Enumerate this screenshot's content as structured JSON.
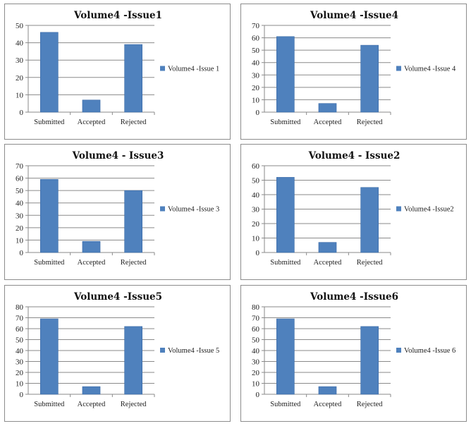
{
  "colors": {
    "bar": "#4f81bd",
    "grid": "#8a8a8a",
    "border": "#8c8c8c"
  },
  "chart_data": [
    {
      "type": "bar",
      "title": "Volume4 -Issue1",
      "categories": [
        "Submitted",
        "Accepted",
        "Rejected"
      ],
      "series": [
        {
          "name": "Volume4 -Issue 1",
          "values": [
            46,
            7,
            39
          ]
        }
      ],
      "ylim": [
        0,
        50
      ],
      "ystep": 10,
      "grid": true,
      "legend": "right"
    },
    {
      "type": "bar",
      "title": "Volume4 -Issue4",
      "categories": [
        "Submitted",
        "Accepted",
        "Rejected"
      ],
      "series": [
        {
          "name": "Volume4 -Issue 4",
          "values": [
            61,
            7,
            54
          ]
        }
      ],
      "ylim": [
        0,
        70
      ],
      "ystep": 10,
      "grid": true,
      "legend": "right"
    },
    {
      "type": "bar",
      "title": "Volume4 - Issue3",
      "categories": [
        "Submitted",
        "Accepted",
        "Rejected"
      ],
      "series": [
        {
          "name": "Volume4 -Issue 3",
          "values": [
            59,
            9,
            50
          ]
        }
      ],
      "ylim": [
        0,
        70
      ],
      "ystep": 10,
      "grid": true,
      "legend": "right"
    },
    {
      "type": "bar",
      "title": "Volume4 - Issue2",
      "categories": [
        "Submitted",
        "Accepted",
        "Rejected"
      ],
      "series": [
        {
          "name": "Volume4 -Issue2",
          "values": [
            52,
            7,
            45
          ]
        }
      ],
      "ylim": [
        0,
        60
      ],
      "ystep": 10,
      "grid": true,
      "legend": "right"
    },
    {
      "type": "bar",
      "title": "Volume4 -Issue5",
      "categories": [
        "Submitted",
        "Accepted",
        "Rejected"
      ],
      "series": [
        {
          "name": "Volume4 -Issue 5",
          "values": [
            69,
            7,
            62
          ]
        }
      ],
      "ylim": [
        0,
        80
      ],
      "ystep": 10,
      "grid": true,
      "legend": "right"
    },
    {
      "type": "bar",
      "title": "Volume4 -Issue6",
      "categories": [
        "Submitted",
        "Accepted",
        "Rejected"
      ],
      "series": [
        {
          "name": "Volume4 -Issue 6",
          "values": [
            69,
            7,
            62
          ]
        }
      ],
      "ylim": [
        0,
        80
      ],
      "ystep": 10,
      "grid": true,
      "legend": "right"
    }
  ]
}
